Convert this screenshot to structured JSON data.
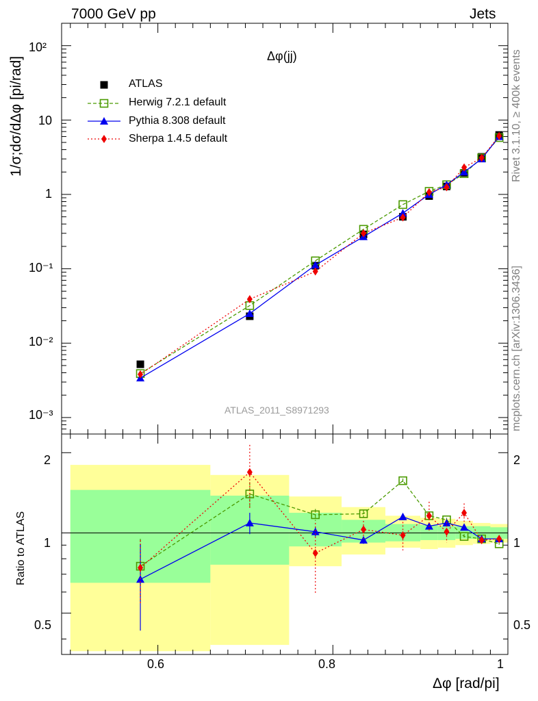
{
  "header": {
    "energy_label": "7000 GeV pp",
    "process_label": "Jets"
  },
  "side_labels": {
    "rivet": "Rivet 3.1.10, ≥ 400k events",
    "mcplots": "mcplots.cern.ch [arXiv:1306.3436]"
  },
  "chart_data": [
    {
      "type": "line",
      "panel": "main",
      "title": "Δφ(jj)",
      "ylabel": "1/σ;dσ/dΔφ [pi/rad]",
      "yscale": "log",
      "ylim": [
        0.0006,
        200
      ],
      "xlim": [
        0.49,
        1.0
      ],
      "watermark": "ATLAS_2011_S8971293",
      "y_tick_labels": [
        "10⁻³",
        "10⁻²",
        "10⁻¹",
        "1",
        "10",
        "10²"
      ],
      "series": [
        {
          "name": "ATLAS",
          "color": "#000000",
          "x": [
            0.58,
            0.705,
            0.78,
            0.835,
            0.88,
            0.91,
            0.93,
            0.95,
            0.97,
            0.99
          ],
          "y": [
            0.0052,
            0.023,
            0.11,
            0.29,
            0.5,
            0.95,
            1.28,
            1.95,
            3.2,
            6.3
          ]
        },
        {
          "name": "Herwig 7.2.1 default",
          "color": "#4a9a00",
          "x": [
            0.58,
            0.705,
            0.78,
            0.835,
            0.88,
            0.91,
            0.93,
            0.95,
            0.97,
            0.99
          ],
          "y": [
            0.0039,
            0.032,
            0.128,
            0.34,
            0.73,
            1.1,
            1.35,
            1.9,
            3.1,
            5.8
          ]
        },
        {
          "name": "Pythia 8.308 default",
          "color": "#0000ee",
          "x": [
            0.58,
            0.705,
            0.78,
            0.835,
            0.88,
            0.91,
            0.93,
            0.95,
            0.97,
            0.99
          ],
          "y": [
            0.0034,
            0.025,
            0.112,
            0.27,
            0.56,
            1.0,
            1.35,
            2.0,
            3.0,
            6.0
          ]
        },
        {
          "name": "Sherpa 1.4.5 default",
          "color": "#ee0000",
          "x": [
            0.58,
            0.705,
            0.78,
            0.835,
            0.88,
            0.91,
            0.93,
            0.95,
            0.97,
            0.99
          ],
          "y": [
            0.0038,
            0.039,
            0.092,
            0.3,
            0.49,
            1.07,
            1.25,
            2.3,
            3.1,
            6.1
          ]
        }
      ]
    },
    {
      "type": "line",
      "panel": "ratio",
      "ylabel": "Ratio to ATLAS",
      "xlabel": "Δφ [rad/pi]",
      "ylim": [
        0.35,
        2.35
      ],
      "xlim": [
        0.49,
        1.0
      ],
      "x_tick_labels": [
        "0.6",
        "0.8",
        "1"
      ],
      "y_tick_labels": [
        "0.5",
        "1",
        "2"
      ],
      "bin_edges": [
        0.5,
        0.66,
        0.75,
        0.81,
        0.86,
        0.9,
        0.92,
        0.94,
        0.96,
        0.98,
        1.0
      ],
      "band_inner": [
        [
          0.65,
          1.45
        ],
        [
          0.76,
          1.38
        ],
        [
          0.89,
          1.19
        ],
        [
          0.92,
          1.12
        ],
        [
          0.93,
          1.08
        ],
        [
          0.94,
          1.07
        ],
        [
          0.94,
          1.06
        ],
        [
          0.95,
          1.06
        ],
        [
          0.95,
          1.06
        ],
        [
          0.95,
          1.05
        ]
      ],
      "band_outer": [
        [
          0.36,
          1.8
        ],
        [
          0.38,
          1.65
        ],
        [
          0.75,
          1.37
        ],
        [
          0.83,
          1.25
        ],
        [
          0.88,
          1.16
        ],
        [
          0.87,
          1.14
        ],
        [
          0.88,
          1.13
        ],
        [
          0.9,
          1.11
        ],
        [
          0.91,
          1.09
        ],
        [
          0.92,
          1.08
        ]
      ],
      "series": [
        {
          "name": "Herwig 7.2.1 default",
          "color": "#4a9a00",
          "x": [
            0.58,
            0.705,
            0.78,
            0.835,
            0.88,
            0.91,
            0.93,
            0.95,
            0.97,
            0.99
          ],
          "y": [
            0.75,
            1.4,
            1.17,
            1.18,
            1.57,
            1.16,
            1.12,
            0.97,
            0.95,
            0.91
          ],
          "err": [
            0.2,
            0.15,
            0.06,
            0.04,
            0.03,
            0.03,
            0.02,
            0.02,
            0.02,
            0.02
          ]
        },
        {
          "name": "Pythia 8.308 default",
          "color": "#0000ee",
          "x": [
            0.58,
            0.705,
            0.78,
            0.835,
            0.88,
            0.91,
            0.93,
            0.95,
            0.97,
            0.99
          ],
          "y": [
            0.67,
            1.09,
            1.01,
            0.94,
            1.15,
            1.06,
            1.09,
            1.05,
            0.95,
            0.95
          ],
          "err": [
            0.24,
            0.1,
            0.04,
            0.03,
            0.03,
            0.03,
            0.02,
            0.02,
            0.02,
            0.02
          ]
        },
        {
          "name": "Sherpa 1.4.5 default",
          "color": "#ee0000",
          "x": [
            0.58,
            0.705,
            0.78,
            0.835,
            0.88,
            0.91,
            0.93,
            0.95,
            0.97,
            0.99
          ],
          "y": [
            0.74,
            1.69,
            0.84,
            1.03,
            0.98,
            1.16,
            1.01,
            1.19,
            0.94,
            0.95
          ],
          "err": [
            0.2,
            0.45,
            0.25,
            0.08,
            0.12,
            0.15,
            0.09,
            0.1,
            0.03,
            0.03
          ]
        }
      ]
    }
  ]
}
